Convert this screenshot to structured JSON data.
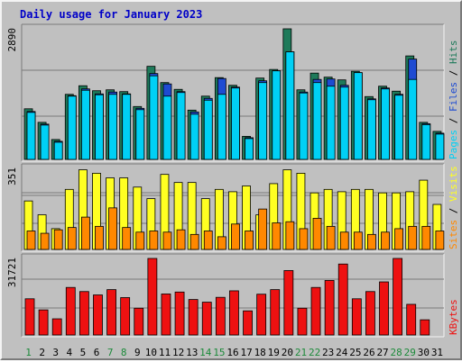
{
  "title": "Daily usage for January 2023",
  "colors": {
    "frame_bg": "#c0c0c0",
    "panel_bg": "#c0c0c0",
    "grid": "#7a7a7a",
    "title": "#0000c8",
    "hits": "#1e7a5a",
    "files": "#1e4bd2",
    "pages": "#00d0f5",
    "visits": "#ffff22",
    "sites": "#ff8800",
    "kbytes": "#ee1111",
    "weekend_day": "#1c8a3a",
    "weekday": "#0000c8"
  },
  "chart_data": {
    "type": "bar",
    "title": "Daily usage for January 2023",
    "x": [
      "1",
      "2",
      "3",
      "4",
      "5",
      "6",
      "7",
      "8",
      "9",
      "10",
      "11",
      "12",
      "13",
      "14",
      "15",
      "16",
      "17",
      "18",
      "19",
      "20",
      "21",
      "22",
      "23",
      "24",
      "25",
      "26",
      "27",
      "28",
      "29",
      "30",
      "31"
    ],
    "weekend_days": [
      1,
      7,
      8,
      14,
      15,
      21,
      22,
      28,
      29
    ],
    "panels": [
      {
        "id": "hits-files-pages",
        "max_label": "2890",
        "ymax": 2890,
        "legend": [
          {
            "text": "Pages",
            "color": "#00d0f5"
          },
          {
            "text": " / ",
            "color": "#000000"
          },
          {
            "text": "Files",
            "color": "#1e4bd2"
          },
          {
            "text": " / ",
            "color": "#000000"
          },
          {
            "text": "Hits",
            "color": "#1e7a5a"
          }
        ],
        "series": [
          {
            "name": "Hits",
            "color": "#1e7a5a",
            "values": [
              1120,
              820,
              440,
              1440,
              1630,
              1520,
              1540,
              1500,
              1170,
              2060,
              1700,
              1550,
              1090,
              1400,
              1810,
              1640,
              510,
              1800,
              1990,
              2890,
              1540,
              1910,
              1820,
              1760,
              1950,
              1390,
              1620,
              1510,
              2290,
              820,
              620
            ]
          },
          {
            "name": "Files",
            "color": "#1e4bd2",
            "values": [
              1060,
              780,
              400,
              1410,
              1560,
              1450,
              1490,
              1450,
              1130,
              1900,
              1670,
              1500,
              1050,
              1350,
              1790,
              1600,
              480,
              1740,
              1960,
              2380,
              1490,
              1770,
              1780,
              1640,
              1920,
              1340,
              1580,
              1440,
              2220,
              790,
              580
            ]
          },
          {
            "name": "Pages",
            "color": "#00d0f5",
            "values": [
              1040,
              760,
              380,
              1400,
              1530,
              1430,
              1440,
              1440,
              1100,
              1850,
              1400,
              1480,
              1000,
              1310,
              1440,
              1580,
              460,
              1700,
              1960,
              2380,
              1470,
              1700,
              1620,
              1600,
              1920,
              1320,
              1560,
              1420,
              1770,
              770,
              560
            ]
          }
        ]
      },
      {
        "id": "visits-sites",
        "max_label": "351",
        "ymax": 351,
        "legend": [
          {
            "text": "Sites",
            "color": "#ff8800"
          },
          {
            "text": " / ",
            "color": "#000000"
          },
          {
            "text": "Visits",
            "color": "#ffff22"
          }
        ],
        "series": [
          {
            "name": "Visits",
            "color": "#ffff22",
            "values": [
              210,
              150,
              90,
              260,
              345,
              330,
              310,
              310,
              270,
              220,
              325,
              290,
              290,
              220,
              260,
              250,
              275,
              150,
              285,
              345,
              330,
              245,
              260,
              250,
              260,
              260,
              245,
              245,
              250,
              300,
              195
            ]
          },
          {
            "name": "Sites",
            "color": "#ff8800",
            "values": [
              80,
              70,
              85,
              95,
              140,
              100,
              180,
              95,
              75,
              80,
              75,
              85,
              65,
              80,
              55,
              110,
              80,
              175,
              115,
              120,
              90,
              135,
              100,
              75,
              75,
              65,
              75,
              90,
              100,
              100,
              80
            ]
          }
        ]
      },
      {
        "id": "kbytes",
        "max_label": "31721",
        "ymax": 31721,
        "legend": [
          {
            "text": "KBytes",
            "color": "#ee1111"
          }
        ],
        "series": [
          {
            "name": "KBytes",
            "color": "#ee1111",
            "values": [
              15000,
              10400,
              6700,
              19700,
              18000,
              16600,
              18800,
              15500,
              11100,
              31721,
              17000,
              17800,
              14700,
              13600,
              15600,
              18300,
              10000,
              16900,
              18800,
              26700,
              11100,
              19700,
              22600,
              29400,
              15000,
              18000,
              22000,
              31721,
              12700,
              6300,
              0
            ]
          }
        ]
      }
    ]
  }
}
